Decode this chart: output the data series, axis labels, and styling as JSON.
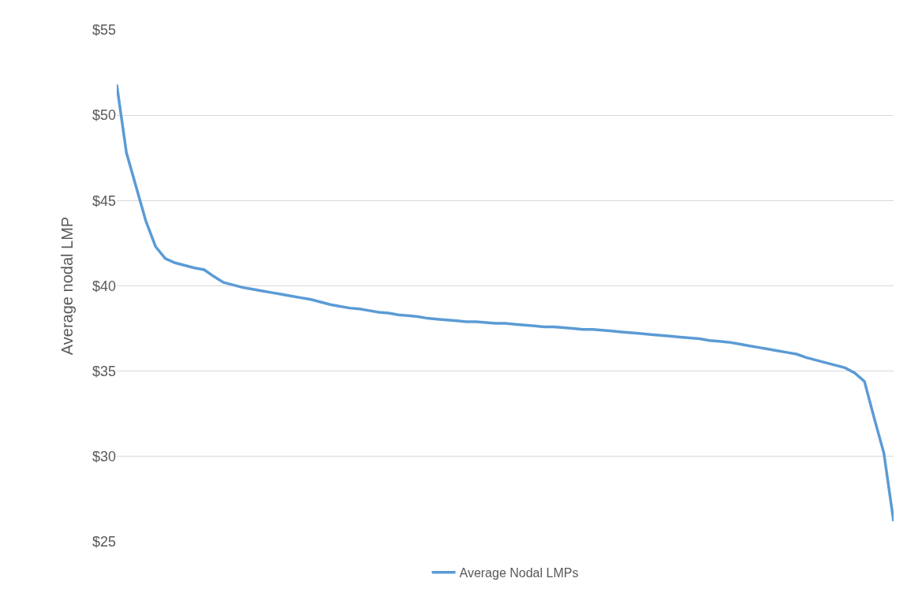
{
  "chart_data": {
    "type": "line",
    "ylabel": "Average nodal LMP",
    "categories": [
      null,
      null,
      null,
      null,
      null,
      null,
      null,
      null,
      null,
      null,
      null,
      null,
      null,
      null,
      null,
      null,
      null,
      null,
      null,
      null,
      null,
      null,
      null,
      null,
      null,
      null,
      null,
      null,
      null,
      null,
      null,
      null,
      null,
      null,
      null,
      null,
      null,
      null,
      null,
      null,
      null,
      null,
      null,
      null,
      null,
      null,
      null,
      null,
      null,
      null,
      null,
      null,
      null,
      null,
      null,
      null,
      null,
      null,
      null,
      null,
      null,
      null,
      null,
      null,
      null,
      null,
      null,
      null,
      null,
      null,
      null,
      null,
      null,
      null,
      null,
      null,
      null,
      null,
      null,
      null,
      null
    ],
    "series": [
      {
        "name": "Average Nodal LMPs",
        "color": "#5b9bd5",
        "values": [
          51.8,
          47.8,
          45.8,
          43.8,
          42.3,
          41.6,
          41.35,
          41.2,
          41.05,
          40.95,
          40.55,
          40.2,
          40.05,
          39.9,
          39.8,
          39.7,
          39.6,
          39.5,
          39.4,
          39.3,
          39.2,
          39.05,
          38.9,
          38.8,
          38.7,
          38.65,
          38.55,
          38.45,
          38.4,
          38.3,
          38.25,
          38.2,
          38.1,
          38.05,
          38.0,
          37.95,
          37.9,
          37.9,
          37.85,
          37.8,
          37.8,
          37.75,
          37.7,
          37.65,
          37.6,
          37.6,
          37.55,
          37.5,
          37.45,
          37.45,
          37.4,
          37.35,
          37.3,
          37.25,
          37.2,
          37.15,
          37.1,
          37.05,
          37.0,
          36.95,
          36.9,
          36.8,
          36.75,
          36.7,
          36.6,
          36.5,
          36.4,
          36.3,
          36.2,
          36.1,
          36.0,
          35.8,
          35.65,
          35.5,
          35.35,
          35.2,
          34.9,
          34.4,
          32.25,
          30.2,
          26.2
        ]
      }
    ],
    "ylim": [
      25,
      55
    ],
    "yticks": [
      {
        "value": 25,
        "label": "$25"
      },
      {
        "value": 30,
        "label": "$30"
      },
      {
        "value": 35,
        "label": "$35"
      },
      {
        "value": 40,
        "label": "$40"
      },
      {
        "value": 45,
        "label": "$45"
      },
      {
        "value": 50,
        "label": "$50"
      },
      {
        "value": 55,
        "label": "$55"
      }
    ],
    "grid": "y",
    "legend": "bottom",
    "tick_labels": "y",
    "marker": "none",
    "line_style": "solid"
  }
}
